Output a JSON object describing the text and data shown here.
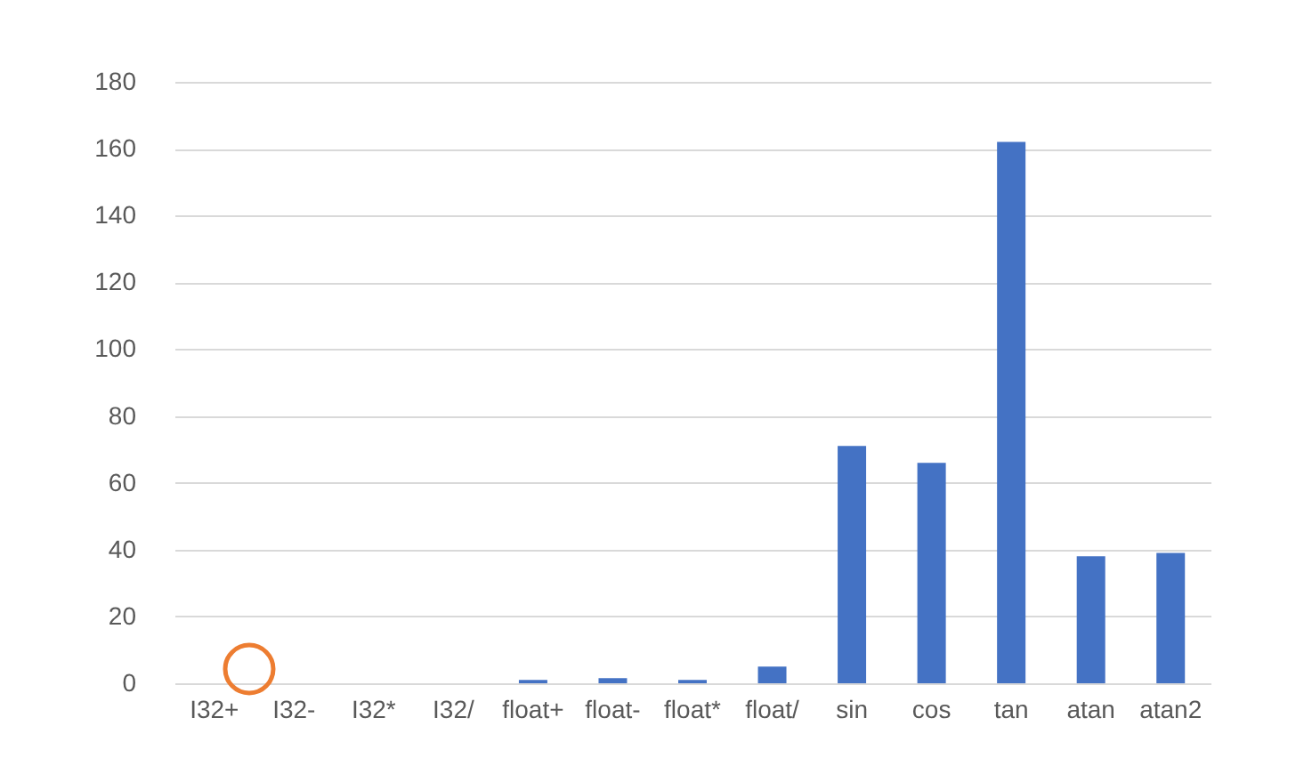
{
  "chart_data": {
    "type": "bar",
    "categories": [
      "I32+",
      "I32-",
      "I32*",
      "I32/",
      "float+",
      "float-",
      "float*",
      "float/",
      "sin",
      "cos",
      "tan",
      "atan",
      "atan2"
    ],
    "values": [
      0,
      0,
      0,
      0,
      1,
      1.5,
      1,
      5,
      71,
      66,
      162,
      38,
      39
    ],
    "color": "#4472c4",
    "ylim": [
      0,
      180
    ],
    "yticks": [
      0,
      20,
      40,
      60,
      80,
      100,
      120,
      140,
      160,
      180
    ],
    "grid": "y"
  }
}
